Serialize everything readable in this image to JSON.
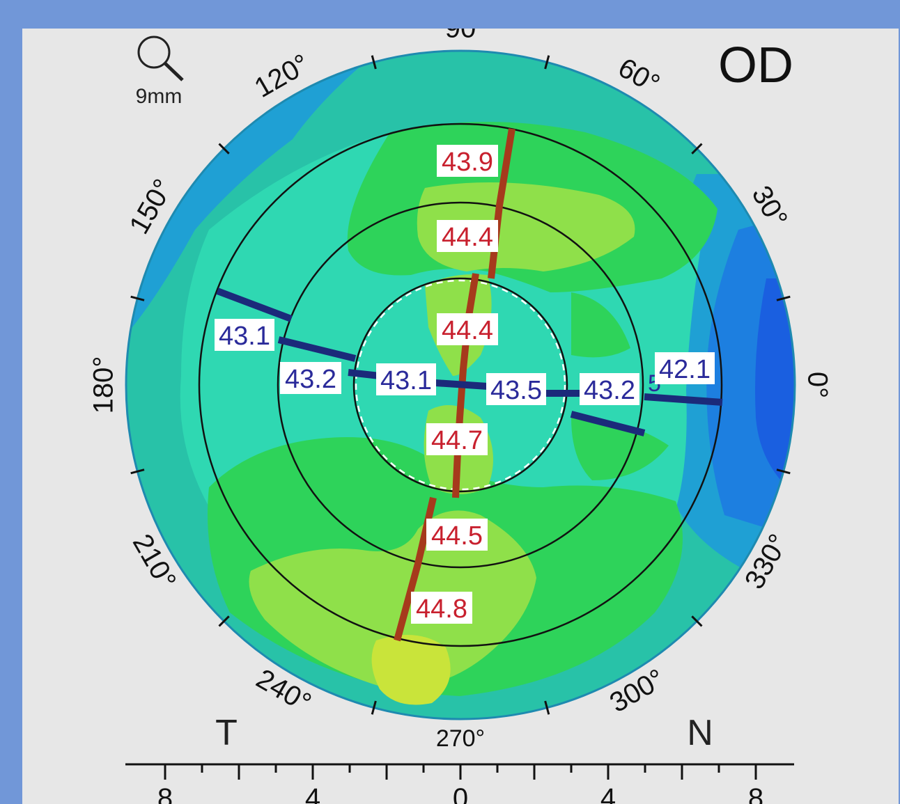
{
  "eye": "OD",
  "zoom": {
    "label": "9mm",
    "icon": "magnifier-icon"
  },
  "orientation": {
    "temporal": "T",
    "nasal": "N"
  },
  "degree_labels": [
    {
      "text": "0°",
      "angle": 0
    },
    {
      "text": "30°",
      "angle": 30
    },
    {
      "text": "60°",
      "angle": 60
    },
    {
      "text": "90",
      "angle": 90
    },
    {
      "text": "120°",
      "angle": 120
    },
    {
      "text": "150°",
      "angle": 150
    },
    {
      "text": "180°",
      "angle": 180
    },
    {
      "text": "210°",
      "angle": 210
    },
    {
      "text": "240°",
      "angle": 240
    },
    {
      "text": "270°",
      "angle": 270
    },
    {
      "text": "300°",
      "angle": 300
    },
    {
      "text": "330°",
      "angle": 330
    }
  ],
  "scale": {
    "ticks": [
      "8",
      "4",
      "0",
      "4",
      "8"
    ]
  },
  "steep_meridian": {
    "color": "#a63a1c",
    "values": [
      "43.9",
      "44.4",
      "44.4",
      "44.7",
      "44.5",
      "44.8"
    ]
  },
  "flat_meridian": {
    "color": "#1b2a7a",
    "values": [
      "43.1",
      "43.2",
      "43.1",
      "43.5",
      "43.2",
      "42.1"
    ],
    "extra_digit": "5"
  },
  "colors": {
    "steep_text": "#c8202e",
    "flat_text": "#2a2a9a",
    "background": "#7197d8"
  }
}
